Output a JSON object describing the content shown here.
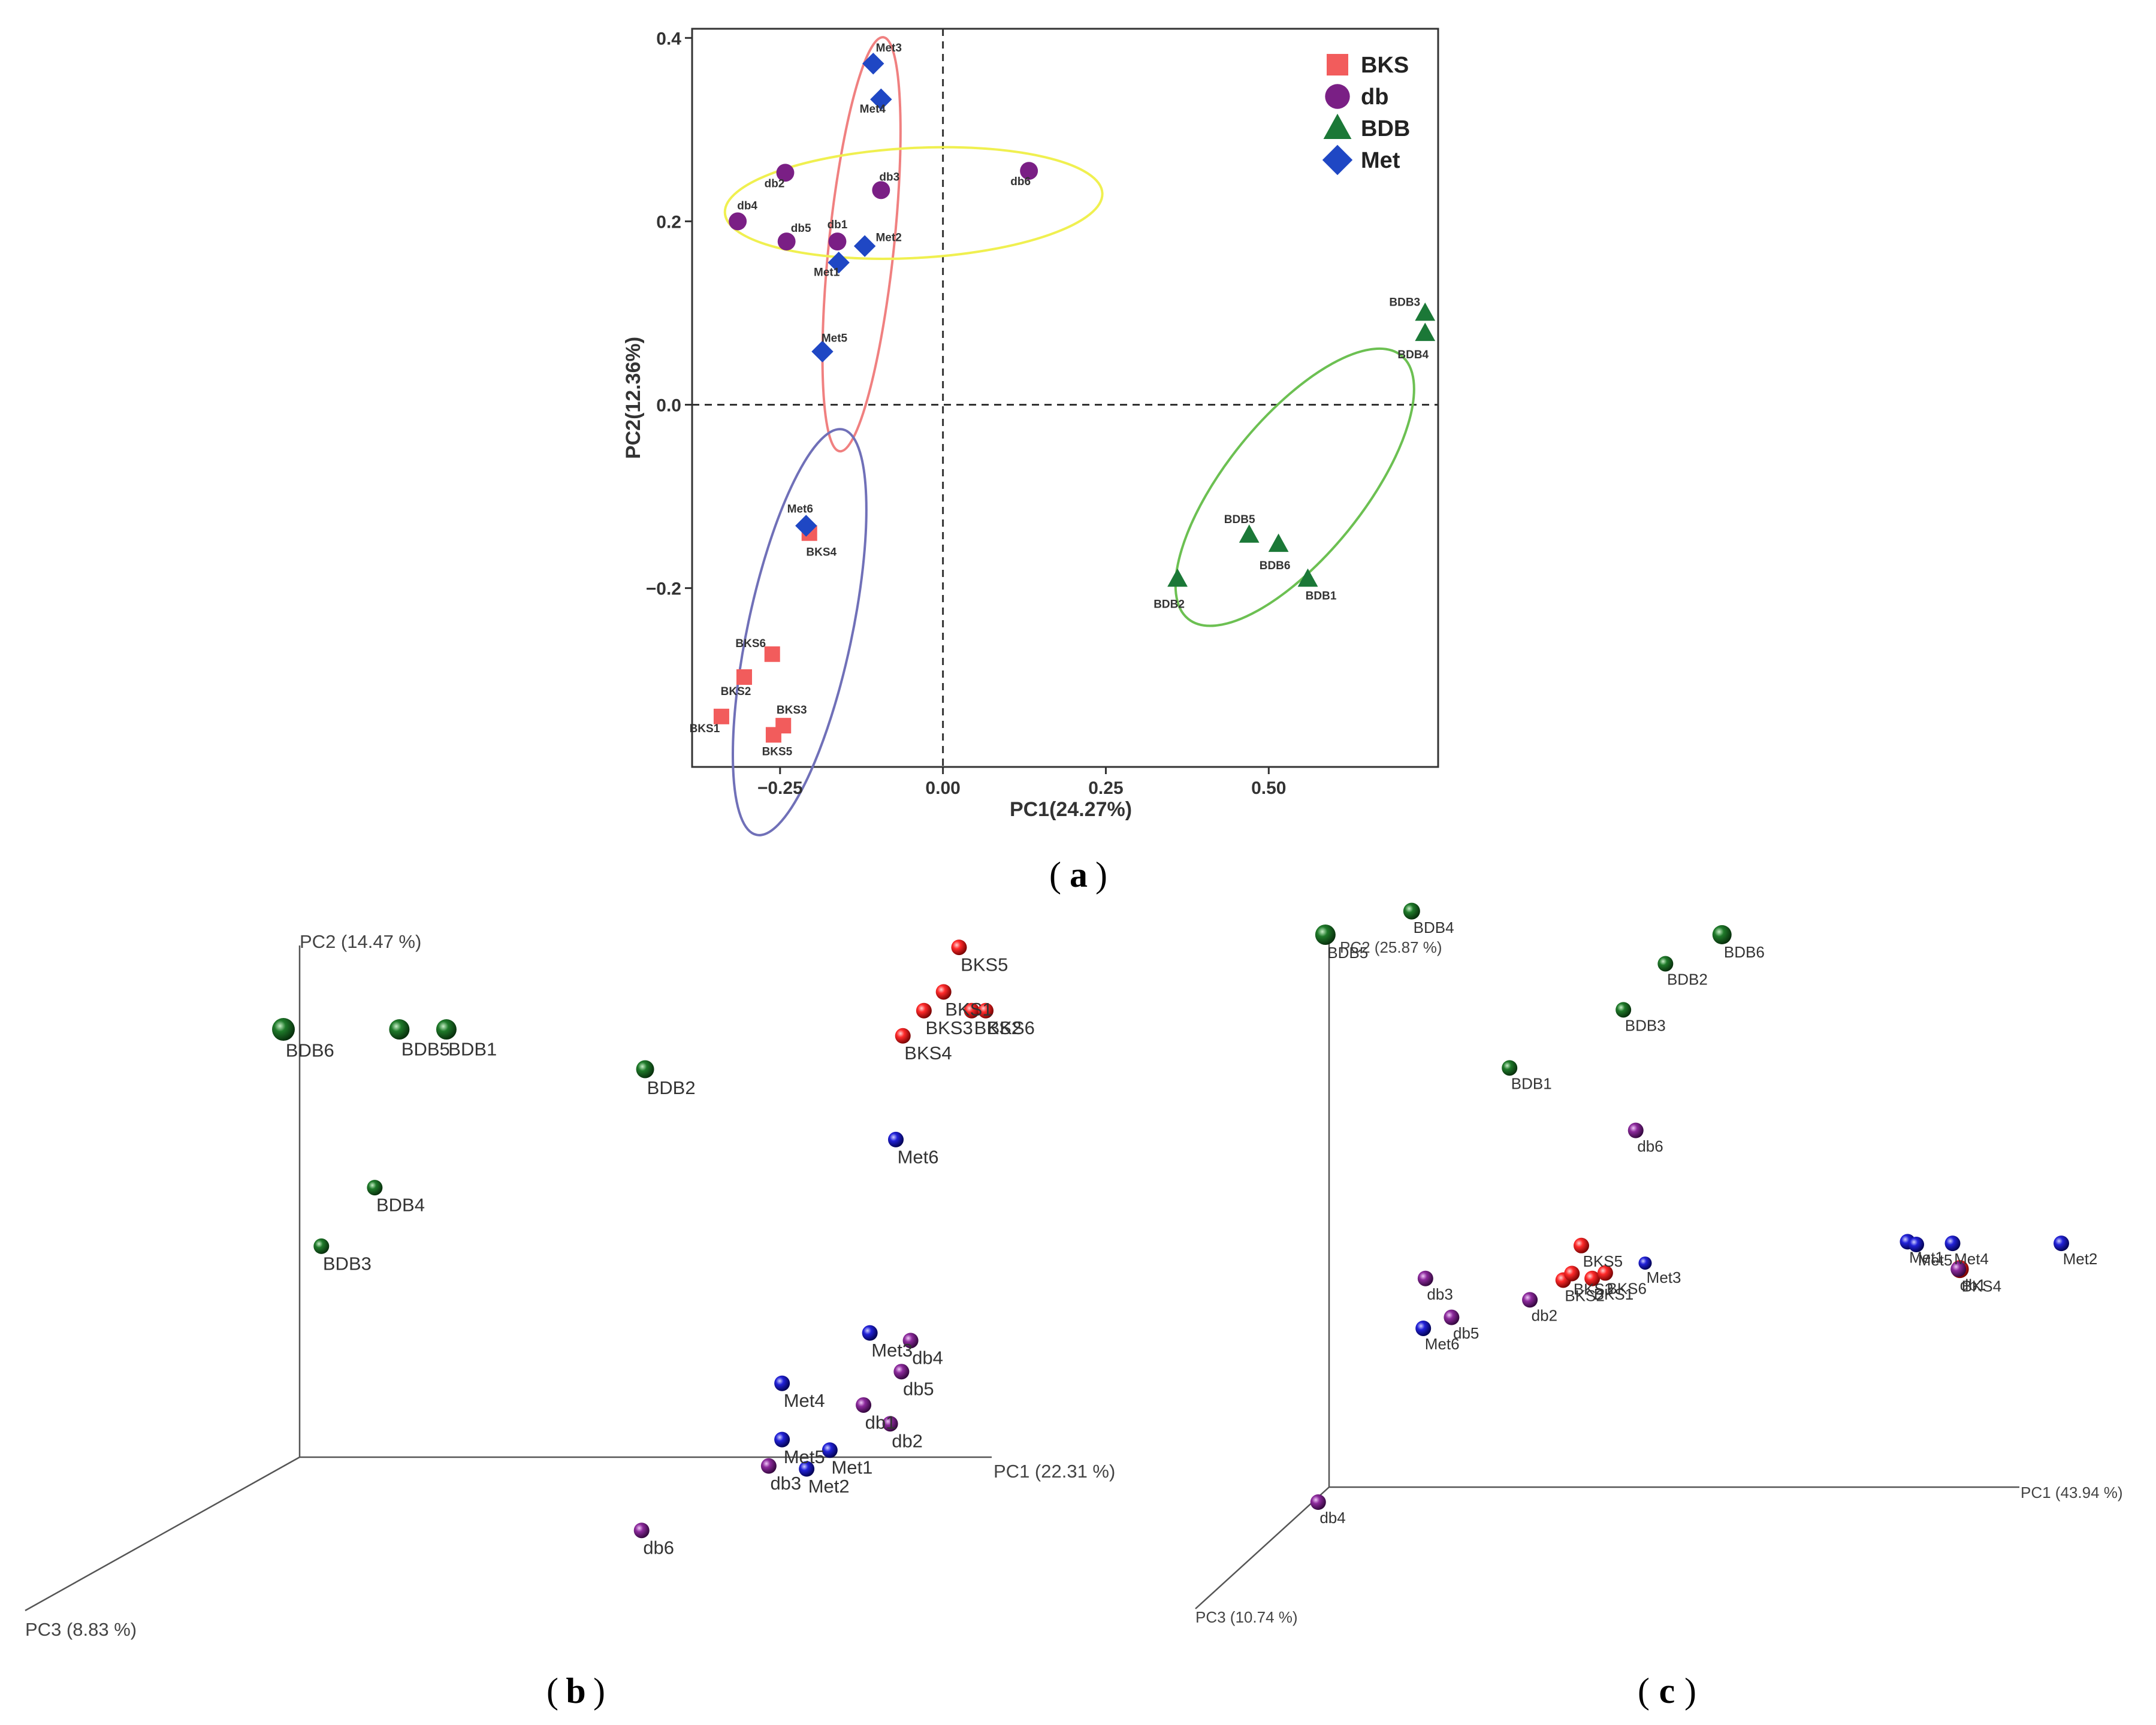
{
  "chart_data": [
    {
      "id": "a",
      "type": "scatter",
      "panel_label": "a",
      "xlabel": "PC1(24.27%)",
      "ylabel": "PC2(12.36%)",
      "xlim": [
        -0.385,
        0.76
      ],
      "ylim": [
        -0.395,
        0.41
      ],
      "xticks": [
        -0.25,
        0.0,
        0.25,
        0.5
      ],
      "xtick_labels": [
        "−0.25",
        "0.00",
        "0.25",
        "0.50"
      ],
      "yticks": [
        -0.2,
        0.0,
        0.2,
        0.4
      ],
      "ytick_labels": [
        "−0.2",
        "0.0",
        "0.2",
        "0.4"
      ],
      "grid": false,
      "reference_lines": {
        "x": 0,
        "y": 0
      },
      "legend_position": "top-right",
      "legend": [
        {
          "label": "BKS",
          "shape": "square",
          "color": "#f25c5c"
        },
        {
          "label": "db",
          "shape": "circle",
          "color": "#7a1f85"
        },
        {
          "label": "BDB",
          "shape": "triangle",
          "color": "#1b7837"
        },
        {
          "label": "Met",
          "shape": "diamond",
          "color": "#1f47c4"
        }
      ],
      "series": [
        {
          "name": "BKS",
          "color": "#f25c5c",
          "shape": "square",
          "points": [
            {
              "label": "BKS1",
              "x": -0.34,
              "y": -0.34
            },
            {
              "label": "BKS2",
              "x": -0.305,
              "y": -0.297
            },
            {
              "label": "BKS3",
              "x": -0.245,
              "y": -0.35
            },
            {
              "label": "BKS4",
              "x": -0.205,
              "y": -0.14
            },
            {
              "label": "BKS5",
              "x": -0.26,
              "y": -0.36
            },
            {
              "label": "BKS6",
              "x": -0.262,
              "y": -0.272
            }
          ]
        },
        {
          "name": "db",
          "color": "#7a1f85",
          "shape": "circle",
          "points": [
            {
              "label": "db1",
              "x": -0.162,
              "y": 0.178
            },
            {
              "label": "db2",
              "x": -0.242,
              "y": 0.253
            },
            {
              "label": "db3",
              "x": -0.095,
              "y": 0.234
            },
            {
              "label": "db4",
              "x": -0.315,
              "y": 0.2
            },
            {
              "label": "db5",
              "x": -0.24,
              "y": 0.178
            },
            {
              "label": "db6",
              "x": 0.132,
              "y": 0.255
            }
          ]
        },
        {
          "name": "BDB",
          "color": "#1b7837",
          "shape": "triangle",
          "points": [
            {
              "label": "BDB1",
              "x": 0.56,
              "y": -0.19
            },
            {
              "label": "BDB2",
              "x": 0.36,
              "y": -0.19
            },
            {
              "label": "BDB3",
              "x": 0.74,
              "y": 0.1
            },
            {
              "label": "BDB4",
              "x": 0.74,
              "y": 0.078
            },
            {
              "label": "BDB5",
              "x": 0.47,
              "y": -0.142
            },
            {
              "label": "BDB6",
              "x": 0.515,
              "y": -0.152
            }
          ]
        },
        {
          "name": "Met",
          "color": "#1f47c4",
          "shape": "diamond",
          "points": [
            {
              "label": "Met1",
              "x": -0.16,
              "y": 0.155
            },
            {
              "label": "Met2",
              "x": -0.12,
              "y": 0.173
            },
            {
              "label": "Met3",
              "x": -0.107,
              "y": 0.372
            },
            {
              "label": "Met4",
              "x": -0.095,
              "y": 0.333
            },
            {
              "label": "Met5",
              "x": -0.185,
              "y": 0.058
            },
            {
              "label": "Met6",
              "x": -0.21,
              "y": -0.132
            }
          ]
        }
      ],
      "ellipses": [
        {
          "group": "Met",
          "color": "#f08080",
          "center": [
            -0.125,
            0.175
          ],
          "rx": 0.05,
          "ry": 0.227,
          "angle_deg": 6
        },
        {
          "group": "db",
          "color": "#f0f050",
          "center": [
            -0.045,
            0.22
          ],
          "rx": 0.29,
          "ry": 0.06,
          "angle_deg": -3
        },
        {
          "group": "BKS",
          "color": "#7070b8",
          "center": [
            -0.22,
            -0.248
          ],
          "rx": 0.08,
          "ry": 0.226,
          "angle_deg": 12
        },
        {
          "group": "BDB",
          "color": "#6cc052",
          "center": [
            0.54,
            -0.09
          ],
          "rx": 0.26,
          "ry": 0.075,
          "angle_deg": -51
        }
      ]
    },
    {
      "id": "b",
      "type": "scatter",
      "panel_label": "b",
      "projection": "3d",
      "axis_labels": {
        "x": "PC1 (22.31 %)",
        "y": "PC2 (14.47 %)",
        "z": "PC3 (8.83 %)"
      },
      "xlim": [
        0,
        1
      ],
      "ylim": [
        0,
        1
      ],
      "points": [
        {
          "label": "BKS1",
          "group": "BKS",
          "x": 0.94,
          "y": 0.884
        },
        {
          "label": "BKS2",
          "group": "BKS",
          "x": 0.98,
          "y": 0.852,
          "label_dx": 1.5
        },
        {
          "label": "BKS3",
          "group": "BKS",
          "x": 0.912,
          "y": 0.852
        },
        {
          "label": "BKS4",
          "group": "BKS",
          "x": 0.882,
          "y": 0.809
        },
        {
          "label": "BKS5",
          "group": "BKS",
          "x": 0.962,
          "y": 0.96
        },
        {
          "label": "BKS6",
          "group": "BKS",
          "x": 1.0,
          "y": 0.852
        },
        {
          "label": "db1",
          "group": "db",
          "x": 0.826,
          "y": 0.179
        },
        {
          "label": "db2",
          "group": "db",
          "x": 0.864,
          "y": 0.147
        },
        {
          "label": "db3",
          "group": "db",
          "x": 0.691,
          "y": 0.075
        },
        {
          "label": "db4",
          "group": "db",
          "x": 0.893,
          "y": 0.289
        },
        {
          "label": "db5",
          "group": "db",
          "x": 0.88,
          "y": 0.236
        },
        {
          "label": "db6",
          "group": "db",
          "x": 0.51,
          "y": -0.035
        },
        {
          "label": "BDB1",
          "group": "BDB",
          "x": 0.232,
          "y": 0.82
        },
        {
          "label": "BDB2",
          "group": "BDB",
          "x": 0.515,
          "y": 0.752
        },
        {
          "label": "BDB3",
          "group": "BDB",
          "x": 0.054,
          "y": 0.45
        },
        {
          "label": "BDB4",
          "group": "BDB",
          "x": 0.13,
          "y": 0.55
        },
        {
          "label": "BDB5",
          "group": "BDB",
          "x": 0.165,
          "y": 0.82
        },
        {
          "label": "BDB6",
          "group": "BDB",
          "x": 0.0,
          "y": 0.82
        },
        {
          "label": "Met1",
          "group": "Met",
          "x": 0.778,
          "y": 0.102
        },
        {
          "label": "Met2",
          "group": "Met",
          "x": 0.745,
          "y": 0.07
        },
        {
          "label": "Met3",
          "group": "Met",
          "x": 0.835,
          "y": 0.302
        },
        {
          "label": "Met4",
          "group": "Met",
          "x": 0.71,
          "y": 0.216
        },
        {
          "label": "Met5",
          "group": "Met",
          "x": 0.71,
          "y": 0.12
        },
        {
          "label": "Met6",
          "group": "Met",
          "x": 0.872,
          "y": 0.632
        }
      ]
    },
    {
      "id": "c",
      "type": "scatter",
      "panel_label": "c",
      "projection": "3d",
      "axis_labels": {
        "x": "PC1 (43.94 %)",
        "y": "PC2 (25.87 %)",
        "z": "PC3 (10.74 %)"
      },
      "xlim": [
        0,
        1
      ],
      "ylim": [
        0,
        1
      ],
      "points": [
        {
          "label": "BKS1",
          "group": "BKS",
          "x": 0.353,
          "y": 0.373
        },
        {
          "label": "BKS2",
          "group": "BKS",
          "x": 0.313,
          "y": 0.37
        },
        {
          "label": "BKS3",
          "group": "BKS",
          "x": 0.325,
          "y": 0.382
        },
        {
          "label": "BKS4",
          "group": "BKS",
          "x": 0.86,
          "y": 0.39
        },
        {
          "label": "BKS5",
          "group": "BKS",
          "x": 0.338,
          "y": 0.433
        },
        {
          "label": "BKS6",
          "group": "BKS",
          "x": 0.371,
          "y": 0.383
        },
        {
          "label": "db1",
          "group": "db",
          "x": 0.858,
          "y": 0.39
        },
        {
          "label": "db2",
          "group": "db",
          "x": 0.267,
          "y": 0.334
        },
        {
          "label": "db3",
          "group": "db",
          "x": 0.123,
          "y": 0.373
        },
        {
          "label": "db4",
          "group": "db",
          "x": -0.025,
          "y": -0.035
        },
        {
          "label": "db5",
          "group": "db",
          "x": 0.159,
          "y": 0.302
        },
        {
          "label": "db6",
          "group": "db",
          "x": 0.413,
          "y": 0.643
        },
        {
          "label": "BDB1",
          "group": "BDB",
          "x": 0.239,
          "y": 0.757
        },
        {
          "label": "BDB2",
          "group": "BDB",
          "x": 0.454,
          "y": 0.947
        },
        {
          "label": "BDB3",
          "group": "BDB",
          "x": 0.396,
          "y": 0.863
        },
        {
          "label": "BDB4",
          "group": "BDB",
          "x": 0.104,
          "y": 1.043
        },
        {
          "label": "BDB5",
          "group": "BDB",
          "x": -0.015,
          "y": 1.0
        },
        {
          "label": "BDB6",
          "group": "BDB",
          "x": 0.532,
          "y": 1.0
        },
        {
          "label": "Met1",
          "group": "Met",
          "x": 0.788,
          "y": 0.44
        },
        {
          "label": "Met2",
          "group": "Met",
          "x": 1.0,
          "y": 0.437
        },
        {
          "label": "Met3",
          "group": "Met",
          "x": 0.426,
          "y": 0.401
        },
        {
          "label": "Met4",
          "group": "Met",
          "x": 0.85,
          "y": 0.437
        },
        {
          "label": "Met5",
          "group": "Met",
          "x": 0.8,
          "y": 0.435
        },
        {
          "label": "Met6",
          "group": "Met",
          "x": 0.12,
          "y": 0.282
        }
      ]
    }
  ],
  "colors": {
    "BKS_3d": "#e81010",
    "db_3d": "#7d1a8c",
    "BDB_3d": "#1a6b24",
    "Met_3d": "#1c1cc8",
    "axis": "#555555",
    "text": "#333333"
  }
}
